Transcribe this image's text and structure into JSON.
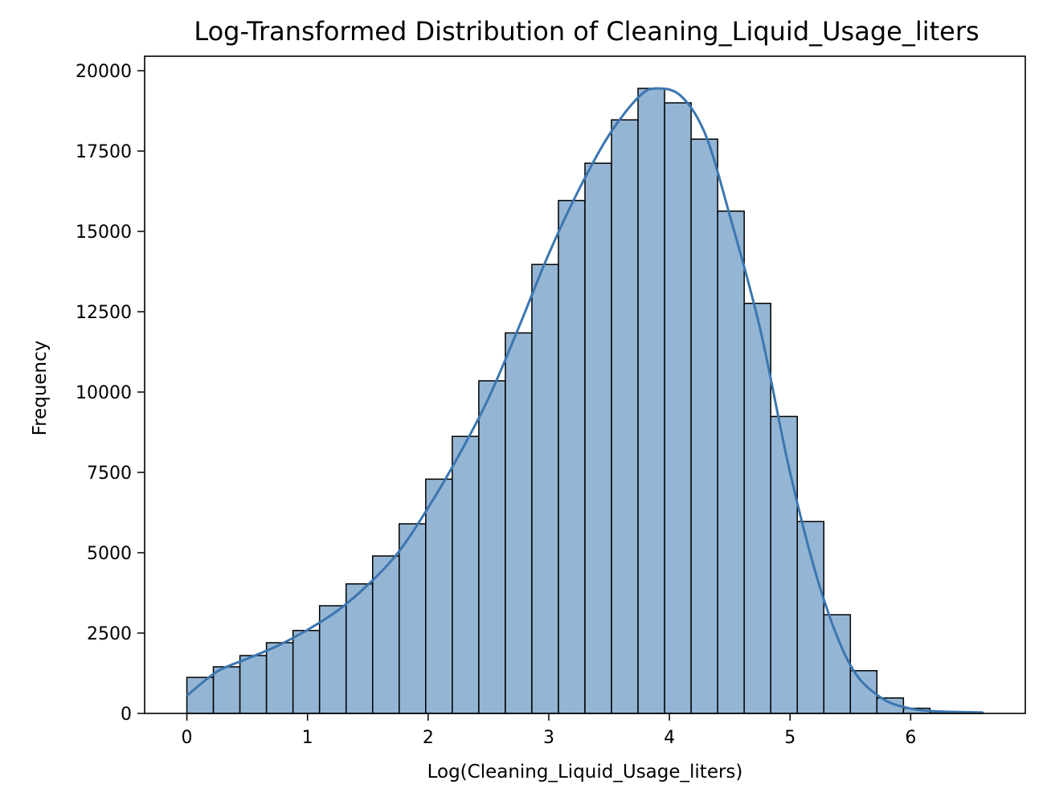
{
  "chart_data": {
    "type": "bar",
    "title": "Log-Transformed Distribution of Cleaning_Liquid_Usage_liters",
    "xlabel": "Log(Cleaning_Liquid_Usage_liters)",
    "ylabel": "Frequency",
    "xlim": [
      -0.35,
      6.95
    ],
    "ylim": [
      0,
      20450
    ],
    "xticks": [
      0,
      1,
      2,
      3,
      4,
      5,
      6
    ],
    "yticks": [
      0,
      2500,
      5000,
      7500,
      10000,
      12500,
      15000,
      17500,
      20000
    ],
    "grid": false,
    "bin_width": 0.22,
    "bins": [
      {
        "x0": 0.0,
        "x1": 0.22,
        "count": 1120
      },
      {
        "x0": 0.22,
        "x1": 0.44,
        "count": 1450
      },
      {
        "x0": 0.44,
        "x1": 0.66,
        "count": 1800
      },
      {
        "x0": 0.66,
        "x1": 0.88,
        "count": 2200
      },
      {
        "x0": 0.88,
        "x1": 1.1,
        "count": 2580
      },
      {
        "x0": 1.1,
        "x1": 1.32,
        "count": 3350
      },
      {
        "x0": 1.32,
        "x1": 1.54,
        "count": 4030
      },
      {
        "x0": 1.54,
        "x1": 1.76,
        "count": 4900
      },
      {
        "x0": 1.76,
        "x1": 1.98,
        "count": 5900
      },
      {
        "x0": 1.98,
        "x1": 2.2,
        "count": 7290
      },
      {
        "x0": 2.2,
        "x1": 2.42,
        "count": 8620
      },
      {
        "x0": 2.42,
        "x1": 2.64,
        "count": 10350
      },
      {
        "x0": 2.64,
        "x1": 2.86,
        "count": 11840
      },
      {
        "x0": 2.86,
        "x1": 3.08,
        "count": 13970
      },
      {
        "x0": 3.08,
        "x1": 3.3,
        "count": 15960
      },
      {
        "x0": 3.3,
        "x1": 3.52,
        "count": 17120
      },
      {
        "x0": 3.52,
        "x1": 3.74,
        "count": 18470
      },
      {
        "x0": 3.74,
        "x1": 3.96,
        "count": 19450
      },
      {
        "x0": 3.96,
        "x1": 4.18,
        "count": 19000
      },
      {
        "x0": 4.18,
        "x1": 4.4,
        "count": 17870
      },
      {
        "x0": 4.4,
        "x1": 4.62,
        "count": 15630
      },
      {
        "x0": 4.62,
        "x1": 4.84,
        "count": 12760
      },
      {
        "x0": 4.84,
        "x1": 5.06,
        "count": 9240
      },
      {
        "x0": 5.06,
        "x1": 5.28,
        "count": 5970
      },
      {
        "x0": 5.28,
        "x1": 5.5,
        "count": 3070
      },
      {
        "x0": 5.5,
        "x1": 5.72,
        "count": 1330
      },
      {
        "x0": 5.72,
        "x1": 5.94,
        "count": 480
      },
      {
        "x0": 5.94,
        "x1": 6.16,
        "count": 160
      },
      {
        "x0": 6.16,
        "x1": 6.38,
        "count": 50
      },
      {
        "x0": 6.38,
        "x1": 6.6,
        "count": 20
      }
    ],
    "kde": {
      "x": [
        0.0,
        0.25,
        0.5,
        0.75,
        1.0,
        1.25,
        1.5,
        1.75,
        2.0,
        2.25,
        2.5,
        2.75,
        3.0,
        3.25,
        3.5,
        3.75,
        3.9,
        4.1,
        4.3,
        4.5,
        4.75,
        5.0,
        5.25,
        5.5,
        5.75,
        6.0,
        6.25,
        6.6
      ],
      "y": [
        550,
        1300,
        1700,
        2100,
        2600,
        3200,
        4000,
        5000,
        6400,
        8000,
        9800,
        12000,
        14300,
        16300,
        18000,
        19200,
        19450,
        19200,
        18000,
        15500,
        12000,
        7500,
        3900,
        1500,
        500,
        150,
        60,
        30
      ]
    },
    "colors": {
      "bar_fill": "#94b5d4",
      "bar_edge": "#000000",
      "kde_line": "#3b76b0"
    }
  }
}
